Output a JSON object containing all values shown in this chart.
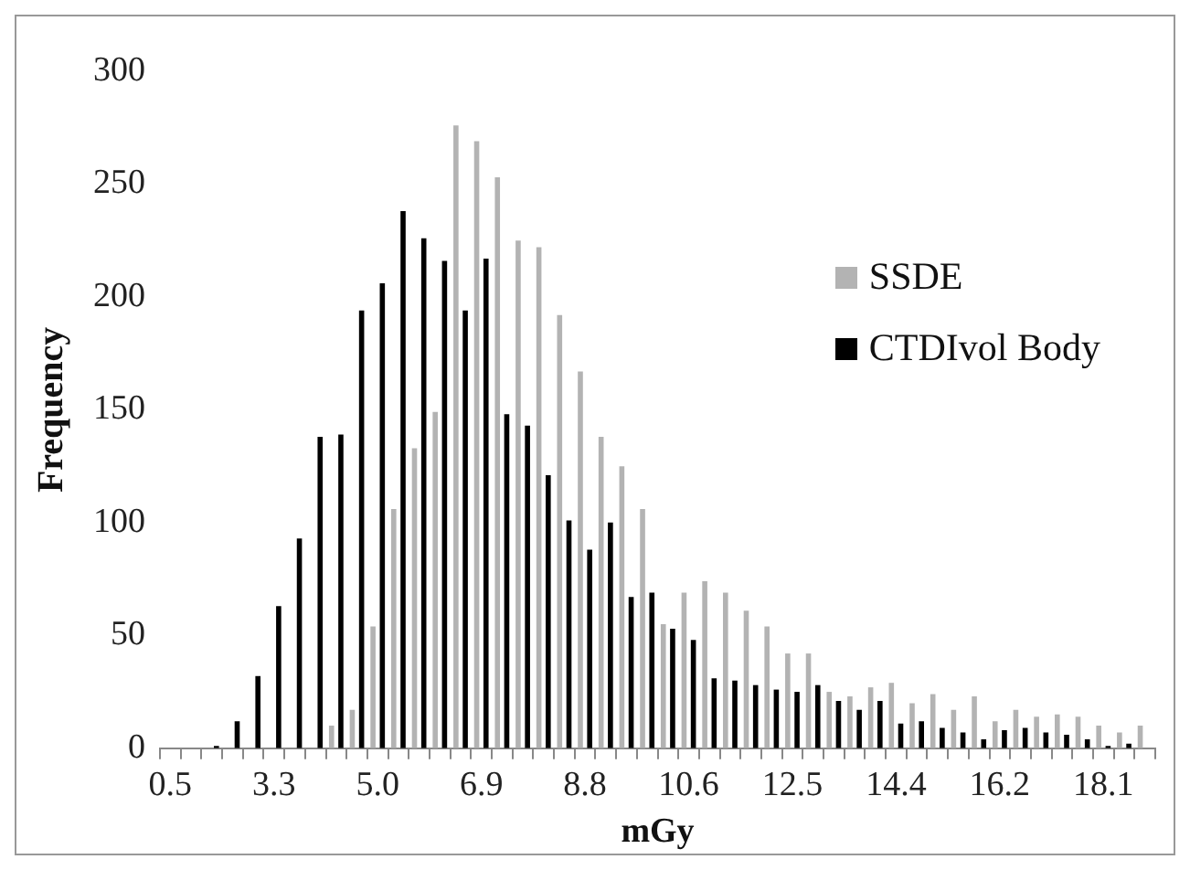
{
  "chart_data": {
    "type": "bar",
    "xlabel": "mGy",
    "ylabel": "Frequency",
    "categories": [
      "0.5",
      null,
      null,
      null,
      null,
      "3.3",
      null,
      null,
      null,
      null,
      "5.0",
      null,
      null,
      null,
      null,
      "6.9",
      null,
      null,
      null,
      null,
      "8.8",
      null,
      null,
      null,
      null,
      "10.6",
      null,
      null,
      null,
      null,
      "12.5",
      null,
      null,
      null,
      null,
      "14.4",
      null,
      null,
      null,
      null,
      "16.2",
      null,
      null,
      null,
      null,
      "18.1",
      null,
      null
    ],
    "series": [
      {
        "name": "SSDE",
        "color": "#b3b3b3",
        "values": [
          0,
          0,
          0,
          0,
          0,
          0,
          0,
          0,
          10,
          17,
          54,
          106,
          133,
          149,
          276,
          269,
          253,
          225,
          222,
          192,
          167,
          138,
          125,
          106,
          55,
          69,
          74,
          69,
          61,
          54,
          42,
          42,
          25,
          23,
          27,
          29,
          20,
          24,
          17,
          23,
          12,
          17,
          14,
          15,
          14,
          10,
          7,
          10
        ]
      },
      {
        "name": "CTDIvol Body",
        "color": "#000000",
        "values": [
          0,
          0,
          1,
          12,
          32,
          63,
          93,
          138,
          139,
          194,
          206,
          238,
          226,
          216,
          194,
          217,
          148,
          143,
          121,
          101,
          88,
          100,
          67,
          69,
          53,
          48,
          31,
          30,
          28,
          26,
          25,
          28,
          21,
          17,
          21,
          11,
          12,
          9,
          7,
          4,
          8,
          9,
          7,
          6,
          4,
          1,
          2,
          0
        ]
      }
    ],
    "ylim": [
      0,
      300
    ],
    "yticks": [
      0,
      50,
      100,
      150,
      200,
      250,
      300
    ],
    "grid": false,
    "legend": "top right"
  }
}
